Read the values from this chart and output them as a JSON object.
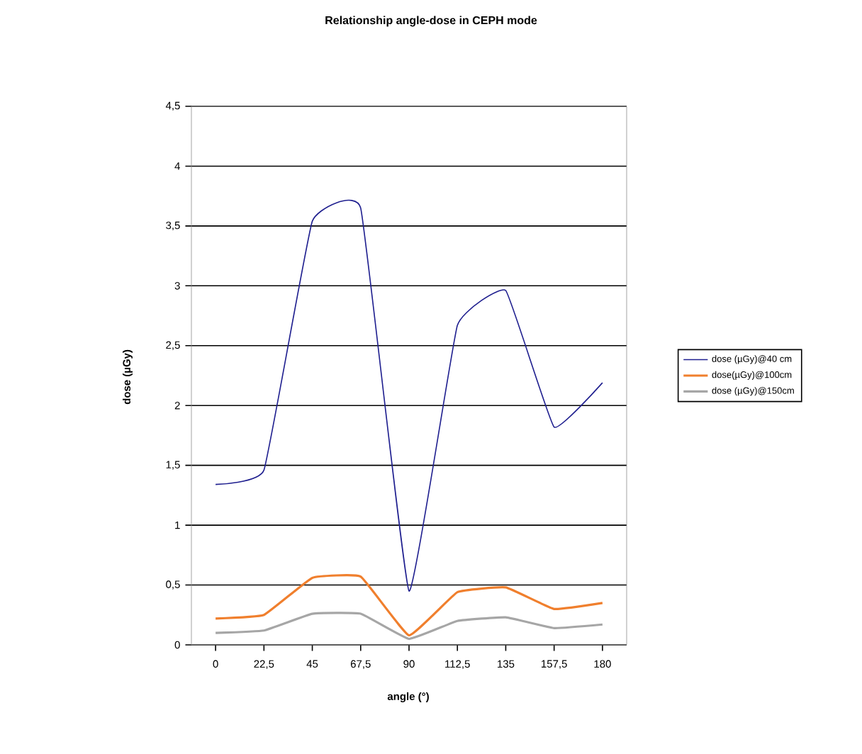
{
  "chart_data": {
    "type": "line",
    "title": "Relationship  angle-dose in CEPH mode",
    "xlabel": "angle (°)",
    "ylabel": "dose (µGy)",
    "categories": [
      "0",
      "22,5",
      "45",
      "67,5",
      "90",
      "112,5",
      "135",
      "157,5",
      "180"
    ],
    "series": [
      {
        "name": "dose (µGy)@40 cm",
        "color": "#1f1f8f",
        "values": [
          1.34,
          1.46,
          3.54,
          3.65,
          0.45,
          2.67,
          2.96,
          1.82,
          2.19
        ]
      },
      {
        "name": "dose(µGy)@100cm",
        "color": "#f07f2d",
        "values": [
          0.22,
          0.25,
          0.56,
          0.57,
          0.08,
          0.44,
          0.48,
          0.3,
          0.35
        ]
      },
      {
        "name": "dose (µGy)@150cm",
        "color": "#a6a6a6",
        "values": [
          0.1,
          0.12,
          0.26,
          0.26,
          0.05,
          0.2,
          0.23,
          0.14,
          0.17
        ]
      }
    ],
    "ylim": [
      0,
      4.5
    ],
    "yticks": [
      0,
      {
        "value": 0.5,
        "label": "0,5"
      },
      1,
      {
        "value": 1.5,
        "label": "1,5"
      },
      2,
      {
        "value": 2.5,
        "label": "2,5"
      },
      3,
      {
        "value": 3.5,
        "label": "3,5"
      },
      4,
      {
        "value": 4.5,
        "label": "4,5"
      }
    ],
    "grid": "y",
    "legend": "right",
    "marker": "none",
    "line_style": "solid"
  }
}
